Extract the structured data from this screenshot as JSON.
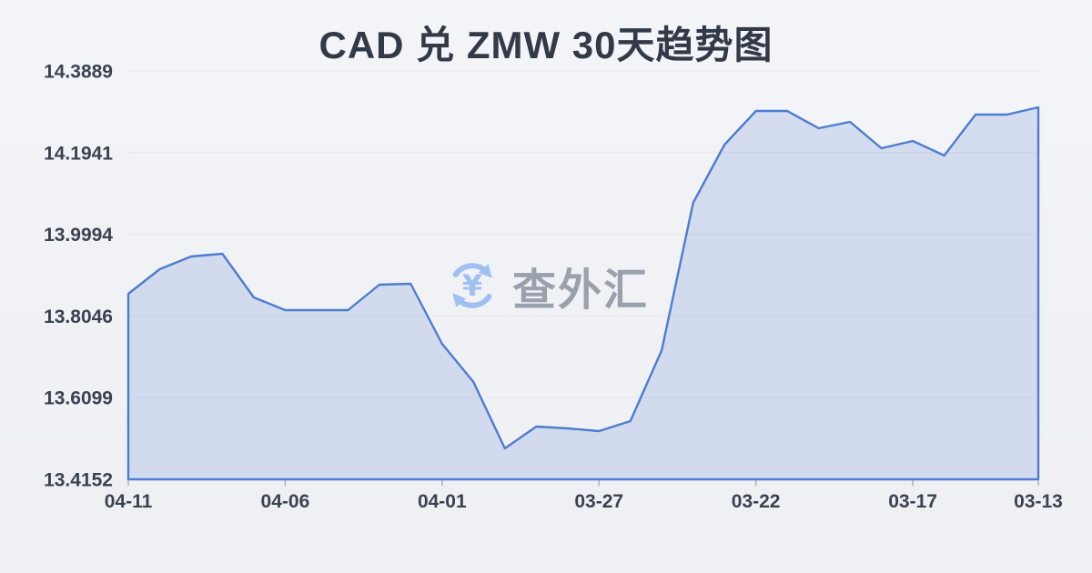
{
  "watermark": {
    "text": "查外汇",
    "icon": "currency-exchange-icon"
  },
  "chart_data": {
    "type": "area",
    "title": "CAD 兑 ZMW 30天趋势图",
    "xlabel": "",
    "ylabel": "",
    "x": [
      "04-11",
      "04-10",
      "04-09",
      "04-08",
      "04-07",
      "04-06",
      "04-05",
      "04-04",
      "04-03",
      "04-02",
      "04-01",
      "03-31",
      "03-30",
      "03-29",
      "03-28",
      "03-27",
      "03-26",
      "03-25",
      "03-24",
      "03-23",
      "03-22",
      "03-21",
      "03-20",
      "03-19",
      "03-18",
      "03-17",
      "03-16",
      "03-15",
      "03-14",
      "03-13"
    ],
    "values": [
      13.8576,
      13.9162,
      13.9465,
      13.953,
      13.8489,
      13.8186,
      13.8186,
      13.8186,
      13.8793,
      13.8815,
      13.7383,
      13.6472,
      13.4889,
      13.541,
      13.5366,
      13.5301,
      13.554,
      13.7231,
      14.0745,
      14.2132,
      14.2935,
      14.2935,
      14.2523,
      14.2675,
      14.2046,
      14.2219,
      14.1872,
      14.2848,
      14.2848,
      14.3022
    ],
    "x_tick_labels": [
      {
        "label": "04-11",
        "index": 0
      },
      {
        "label": "04-06",
        "index": 5
      },
      {
        "label": "04-01",
        "index": 10
      },
      {
        "label": "03-27",
        "index": 15
      },
      {
        "label": "03-22",
        "index": 20
      },
      {
        "label": "03-17",
        "index": 25
      },
      {
        "label": "03-13",
        "index": 29
      }
    ],
    "y_tick_labels": [
      "13.4152",
      "13.6099",
      "13.8046",
      "13.9994",
      "14.1941",
      "14.3889"
    ],
    "ylim": [
      13.4152,
      14.3889
    ],
    "x_order": "newest-to-oldest",
    "grid": true,
    "legend": "none",
    "colors": {
      "line": "#4d7cd1",
      "area": "rgba(90,130,212,0.20)",
      "gridline": "#e3e6ec",
      "tick": "#aab0bb",
      "axis_text": "#3a4250",
      "title_text": "#333a47",
      "watermark_icon": "#9fc0f0",
      "watermark_text": "#9aa1ac",
      "background": "#f1f2f5"
    }
  }
}
